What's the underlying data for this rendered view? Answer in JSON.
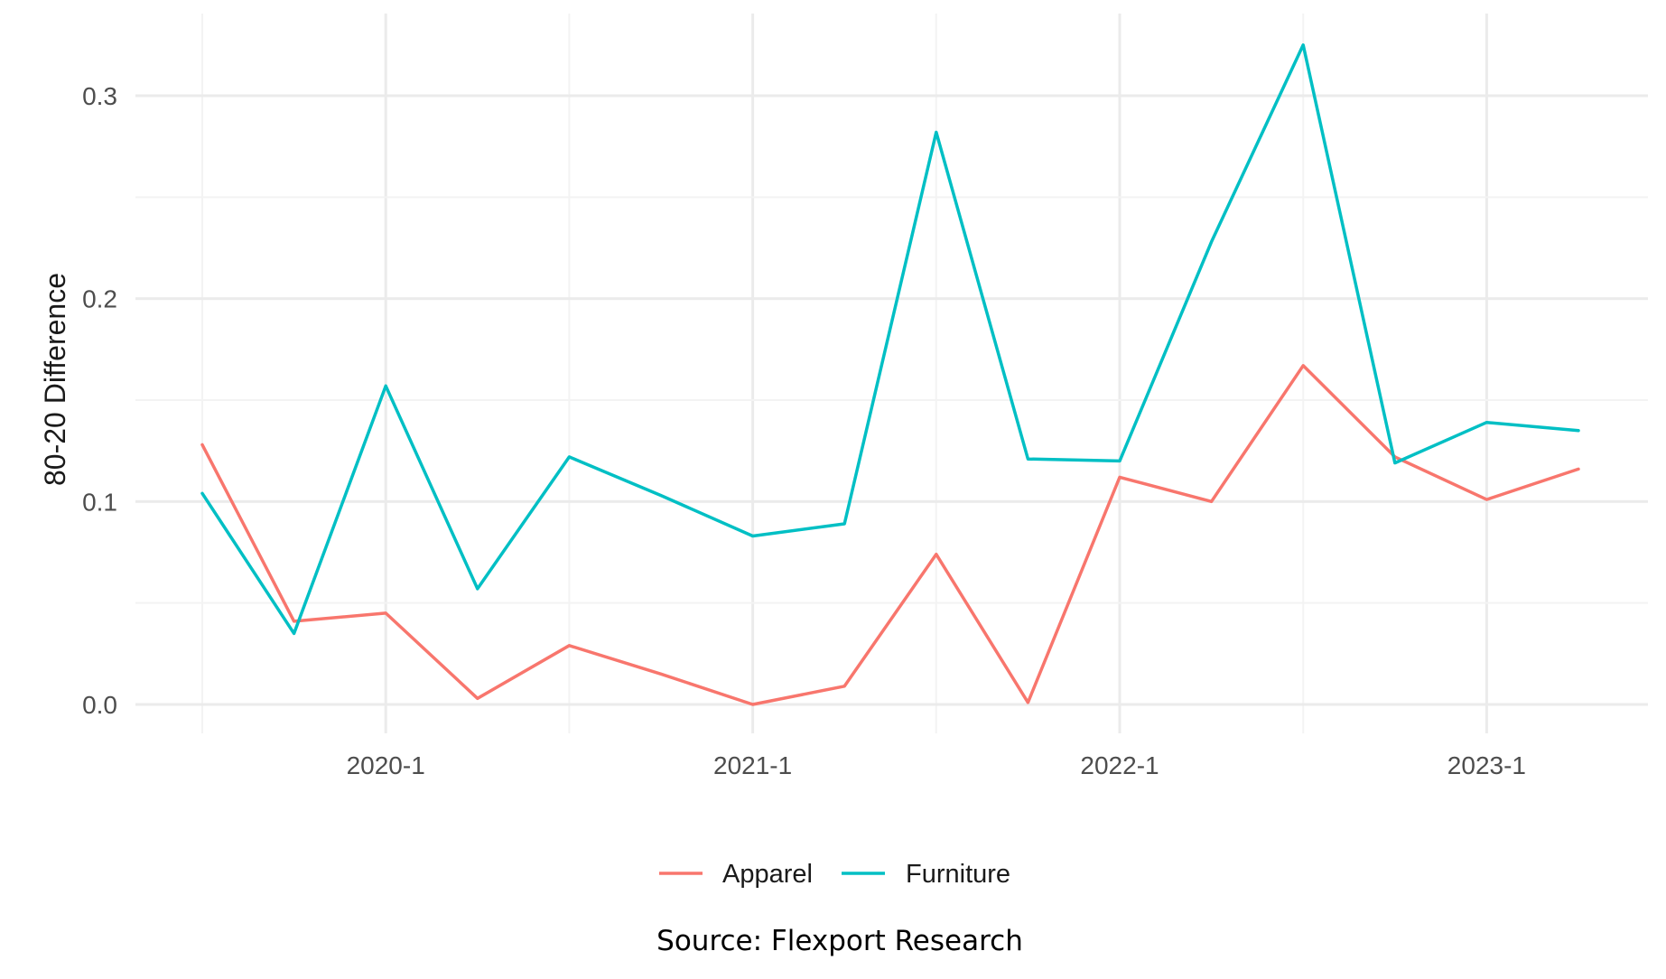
{
  "chart_data": {
    "type": "line",
    "title": "",
    "xlabel": "",
    "ylabel": "80-20 Difference",
    "x": [
      "2019-3",
      "2019-4",
      "2020-1",
      "2020-2",
      "2020-3",
      "2020-4",
      "2021-1",
      "2021-2",
      "2021-3",
      "2021-4",
      "2022-1",
      "2022-2",
      "2022-3",
      "2022-4",
      "2023-1",
      "2023-2"
    ],
    "x_tick_labels": [
      "2020-1",
      "2021-1",
      "2022-1",
      "2023-1"
    ],
    "y_tick_labels": [
      "0.0",
      "0.1",
      "0.2",
      "0.3"
    ],
    "y_ticks": [
      0.0,
      0.1,
      0.2,
      0.3
    ],
    "ylim": [
      -0.015,
      0.335
    ],
    "grid": true,
    "legend_position": "bottom",
    "series": [
      {
        "name": "Apparel",
        "color": "#F8766D",
        "values": [
          0.128,
          0.041,
          0.045,
          0.003,
          0.029,
          0.015,
          0.0,
          0.009,
          0.074,
          0.001,
          0.112,
          0.1,
          0.167,
          0.122,
          0.101,
          0.116
        ]
      },
      {
        "name": "Furniture",
        "color": "#00BFC4",
        "values": [
          0.104,
          0.035,
          0.157,
          0.057,
          0.122,
          0.103,
          0.083,
          0.089,
          0.282,
          0.121,
          0.12,
          0.228,
          0.325,
          0.119,
          0.139,
          0.135
        ]
      }
    ],
    "source": "Source: Flexport Research"
  }
}
